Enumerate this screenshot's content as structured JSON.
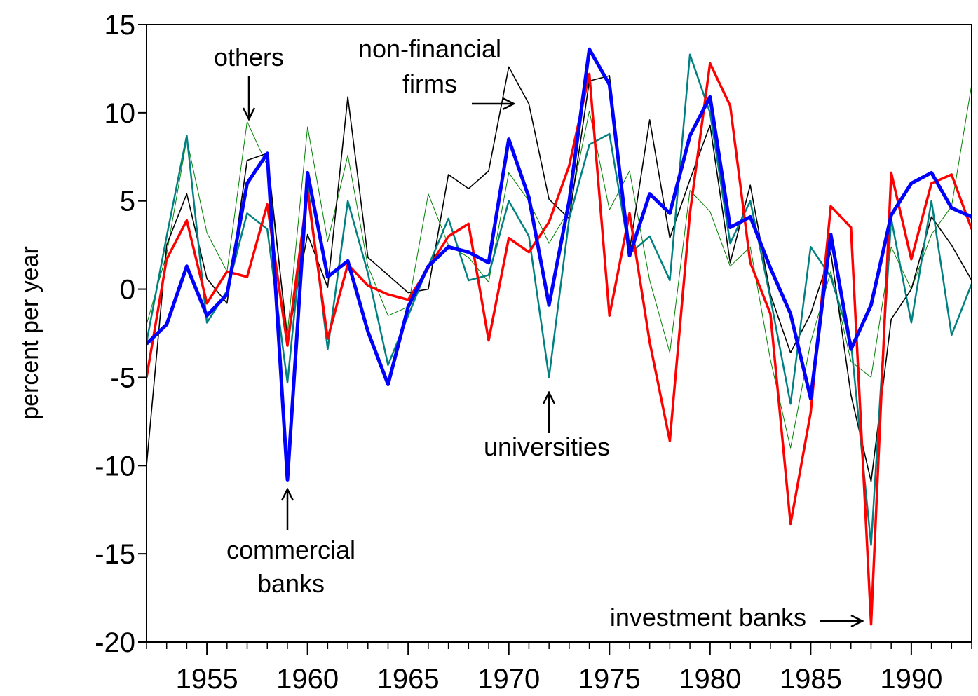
{
  "chart_data": {
    "type": "line",
    "y_label": "percent per year",
    "x": [
      1952,
      1953,
      1954,
      1955,
      1956,
      1957,
      1958,
      1959,
      1960,
      1961,
      1962,
      1963,
      1964,
      1965,
      1966,
      1967,
      1968,
      1969,
      1970,
      1971,
      1972,
      1973,
      1974,
      1975,
      1976,
      1977,
      1978,
      1979,
      1980,
      1981,
      1982,
      1983,
      1984,
      1985,
      1986,
      1987,
      1988,
      1989,
      1990,
      1991,
      1992,
      1993
    ],
    "xlim": [
      1952,
      1993
    ],
    "xticks": [
      1955,
      1960,
      1965,
      1970,
      1975,
      1980,
      1985,
      1990
    ],
    "ylim": [
      -20,
      15
    ],
    "yticks": [
      -20,
      -15,
      -10,
      -5,
      0,
      5,
      10,
      15
    ],
    "grid": false,
    "series": [
      {
        "name": "others",
        "color": "#008000",
        "width": 1,
        "values": [
          -2.0,
          2.0,
          8.5,
          3.2,
          1.0,
          9.5,
          7.0,
          -2.5,
          9.2,
          2.7,
          7.6,
          1.3,
          -1.5,
          -1.0,
          5.4,
          2.5,
          1.8,
          0.4,
          6.6,
          5.0,
          2.6,
          4.5,
          10.1,
          4.5,
          6.7,
          0.5,
          -3.6,
          5.6,
          4.4,
          1.3,
          2.4,
          -4.0,
          -9.0,
          -3.0,
          1.0,
          -4.1,
          -5.0,
          2.4,
          0.0,
          3.1,
          4.7,
          11.6
        ]
      },
      {
        "name": "non-financial firms",
        "color": "#000000",
        "width": 1.6,
        "values": [
          -10.0,
          2.5,
          5.4,
          0.6,
          -0.8,
          7.3,
          7.7,
          -2.9,
          3.1,
          0.1,
          10.9,
          1.8,
          0.8,
          -0.2,
          0.0,
          6.5,
          5.7,
          6.7,
          12.6,
          10.5,
          5.1,
          4.0,
          11.8,
          12.1,
          2.2,
          9.6,
          2.9,
          6.2,
          9.3,
          1.5,
          5.9,
          -0.3,
          -3.6,
          -1.4,
          2.1,
          -6.0,
          -10.9,
          -1.7,
          0.0,
          4.1,
          2.5,
          0.5
        ]
      },
      {
        "name": "universities",
        "color": "#008080",
        "width": 2.5,
        "values": [
          -3.0,
          3.0,
          8.7,
          -1.9,
          -0.1,
          4.3,
          3.4,
          -5.3,
          6.0,
          -3.4,
          5.0,
          0.9,
          -4.3,
          -1.5,
          1.3,
          4.0,
          0.5,
          0.8,
          5.0,
          3.0,
          -5.0,
          4.0,
          8.2,
          8.8,
          2.0,
          3.0,
          0.5,
          13.3,
          10.0,
          2.6,
          5.0,
          -0.5,
          -6.5,
          2.4,
          0.7,
          -3.0,
          -14.5,
          4.0,
          -1.9,
          5.0,
          -2.6,
          0.3
        ]
      },
      {
        "name": "investment banks",
        "color": "#ff0000",
        "width": 3.5,
        "values": [
          -5.0,
          1.7,
          3.9,
          -0.8,
          1.0,
          0.7,
          4.8,
          -3.2,
          5.5,
          -2.8,
          1.4,
          0.2,
          -0.3,
          -0.6,
          1.2,
          3.0,
          3.7,
          -2.9,
          2.9,
          2.1,
          3.8,
          7.0,
          12.2,
          -1.5,
          4.3,
          -3.0,
          -8.6,
          4.3,
          12.8,
          10.4,
          1.5,
          -1.4,
          -13.3,
          -7.0,
          4.7,
          3.5,
          -19.0,
          6.6,
          1.7,
          6.0,
          6.5,
          3.4
        ]
      },
      {
        "name": "commercial banks",
        "color": "#0000ff",
        "width": 5,
        "values": [
          -3.1,
          -2.0,
          1.3,
          -1.5,
          -0.3,
          6.0,
          7.7,
          -10.8,
          6.6,
          0.7,
          1.6,
          -2.4,
          -5.4,
          -1.0,
          1.3,
          2.4,
          2.1,
          1.5,
          8.5,
          5.2,
          -0.9,
          5.0,
          13.6,
          11.6,
          1.9,
          5.4,
          4.3,
          8.7,
          10.9,
          3.5,
          4.1,
          1.2,
          -1.4,
          -6.2,
          3.1,
          -3.4,
          -0.9,
          4.2,
          6.0,
          6.6,
          4.6,
          4.1
        ]
      }
    ]
  }
}
